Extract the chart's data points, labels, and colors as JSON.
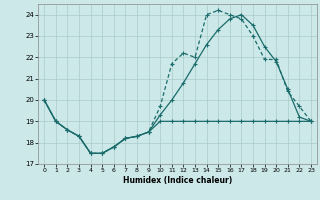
{
  "xlabel": "Humidex (Indice chaleur)",
  "bg_color": "#cce8e8",
  "line_color": "#1a6b6b",
  "grid_color": "#aacccc",
  "xlim": [
    -0.5,
    23.5
  ],
  "ylim": [
    17,
    24.5
  ],
  "yticks": [
    17,
    18,
    19,
    20,
    21,
    22,
    23,
    24
  ],
  "xticks": [
    0,
    1,
    2,
    3,
    4,
    5,
    6,
    7,
    8,
    9,
    10,
    11,
    12,
    13,
    14,
    15,
    16,
    17,
    18,
    19,
    20,
    21,
    22,
    23
  ],
  "line_bottom_x": [
    0,
    1,
    2,
    3,
    4,
    5,
    6,
    7,
    8,
    9,
    10,
    11,
    12,
    13,
    14,
    15,
    16,
    17,
    18,
    19,
    20,
    21,
    22,
    23
  ],
  "line_bottom_y": [
    20,
    19,
    18.6,
    18.3,
    17.5,
    17.5,
    17.8,
    18.2,
    18.3,
    18.5,
    19.0,
    19.0,
    19.0,
    19.0,
    19.0,
    19.0,
    19.0,
    19.0,
    19.0,
    19.0,
    19.0,
    19.0,
    19.0,
    19.0
  ],
  "line_mid_x": [
    0,
    1,
    2,
    3,
    4,
    5,
    6,
    7,
    8,
    9,
    10,
    11,
    12,
    13,
    14,
    15,
    16,
    17,
    18,
    19,
    20,
    21,
    22,
    23
  ],
  "line_mid_y": [
    20,
    19,
    18.6,
    18.3,
    17.5,
    17.5,
    17.8,
    18.2,
    18.3,
    18.5,
    19.3,
    20.0,
    20.8,
    21.7,
    22.6,
    23.3,
    23.8,
    24.0,
    23.5,
    22.5,
    21.8,
    20.5,
    19.2,
    19.0
  ],
  "line_top_x": [
    0,
    1,
    2,
    3,
    4,
    5,
    6,
    7,
    8,
    9,
    10,
    11,
    12,
    13,
    14,
    15,
    16,
    17,
    18,
    19,
    20,
    21,
    22,
    23
  ],
  "line_top_y": [
    20,
    19,
    18.6,
    18.3,
    17.5,
    17.5,
    17.8,
    18.2,
    18.3,
    18.5,
    19.7,
    21.7,
    22.2,
    22.0,
    24.0,
    24.2,
    24.0,
    23.8,
    23.0,
    21.9,
    21.9,
    20.4,
    19.7,
    19.0
  ]
}
